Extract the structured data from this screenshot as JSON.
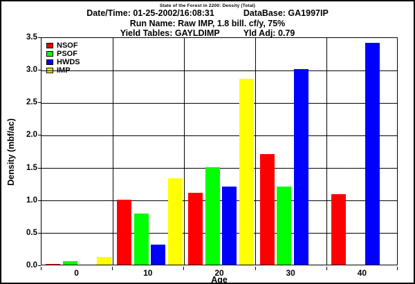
{
  "header": {
    "subtitle": "State of the Forest in 2200: Density (Total)",
    "datetime_label": "Date/Time: 01-25-2002/16:08:31",
    "database_label": "DataBase: GA1997IP",
    "run_name_label": "Run Name: Raw IMP, 1.8 bill. cf/y, 75%",
    "yield_tables_label": "Yield Tables: GAYLDIMP",
    "yld_adj_label": "Yld Adj: 0.79"
  },
  "chart_data": {
    "type": "bar",
    "title": "State of the Forest in 2200: Density (Total)",
    "xlabel": "Age",
    "ylabel": "Density (mbf/ac)",
    "categories": [
      "0",
      "10",
      "20",
      "30",
      "40"
    ],
    "series": [
      {
        "name": "NSOF",
        "color": "#ff0000",
        "values": [
          0.01,
          1.0,
          1.1,
          1.7,
          1.08
        ]
      },
      {
        "name": "PSOF",
        "color": "#00ff00",
        "values": [
          0.05,
          0.78,
          1.5,
          1.2,
          0.0
        ]
      },
      {
        "name": "HWDS",
        "color": "#0000ff",
        "values": [
          0.0,
          0.31,
          1.2,
          3.0,
          3.4
        ]
      },
      {
        "name": "IMP",
        "color": "#ffff00",
        "values": [
          0.12,
          1.33,
          2.85,
          0.0,
          0.0
        ]
      }
    ],
    "ylim": [
      0,
      3.5
    ],
    "yticks": [
      "0.0",
      "0.5",
      "1.0",
      "1.5",
      "2.0",
      "2.5",
      "3.0",
      "3.5"
    ],
    "grid": true,
    "legend_position": "top-left",
    "colors": {
      "background": "#ffffff",
      "axis": "#000000",
      "text": "#000000"
    }
  }
}
